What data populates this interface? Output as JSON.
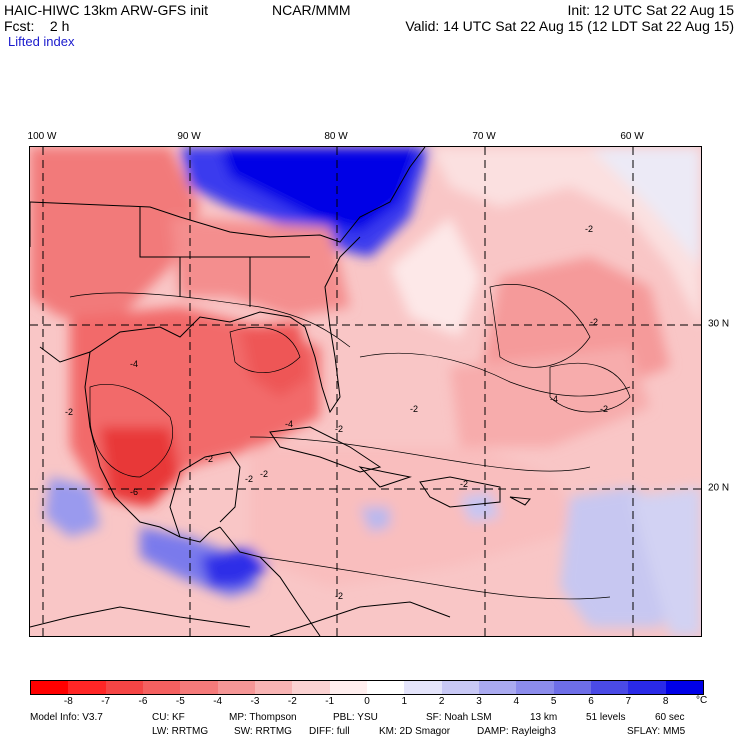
{
  "header": {
    "model_title": "HAIC-HIWC 13km ARW-GFS init",
    "org": "NCAR/MMM",
    "forecast": "Fcst:    2 h",
    "init": "Init: 12 UTC Sat 22 Aug 15",
    "valid": "Valid: 14 UTC Sat 22 Aug 15 (12 LDT Sat 22 Aug 15)",
    "field": "Lifted index"
  },
  "map": {
    "lon_labels": [
      "100 W",
      "90 W",
      "80 W",
      "70 W",
      "60 W"
    ],
    "lat_labels": [
      "30 N",
      "20 N"
    ],
    "contour_labels": [
      "-2",
      "-2",
      "-2",
      "-4",
      "-6",
      "-2",
      "-2",
      "-2",
      "-4",
      "-2",
      "-2",
      "-2",
      "-4",
      "-2",
      "-2"
    ]
  },
  "colorbar": {
    "ticks": [
      "-8",
      "-7",
      "-6",
      "-5",
      "-4",
      "-3",
      "-2",
      "-1",
      "0",
      "1",
      "2",
      "3",
      "4",
      "5",
      "6",
      "7",
      "8"
    ],
    "units": "°C",
    "colors": [
      "#ff0000",
      "#ff2626",
      "#f54545",
      "#f56060",
      "#f57a7a",
      "#f59696",
      "#f8b4b4",
      "#fbd2d2",
      "#ffeeee",
      "#ffffff",
      "#e4e4fb",
      "#c8c8f5",
      "#aaaaf0",
      "#8c8cec",
      "#6e6ee8",
      "#4a4ae6",
      "#2a2ae8",
      "#0000e8"
    ]
  },
  "footer": {
    "line1": [
      "Model Info: V3.7",
      "CU: KF",
      "MP: Thompson",
      "PBL: YSU",
      "SF: Noah LSM",
      "13 km",
      "51 levels",
      "60 sec"
    ],
    "line2": [
      "LW: RRTMG",
      "SW: RRTMG",
      "DIFF: full",
      "KM: 2D Smagor",
      "DAMP: Rayleigh3",
      "SFLAY: MM5"
    ]
  }
}
